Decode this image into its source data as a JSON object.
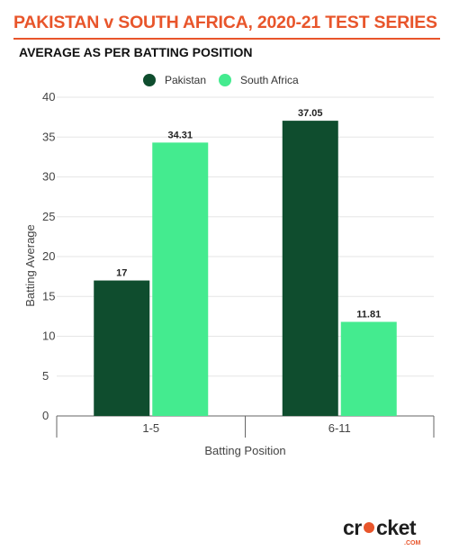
{
  "header": {
    "title": "PAKISTAN v SOUTH AFRICA, 2020-21 TEST SERIES",
    "subtitle": "AVERAGE AS PER BATTING POSITION"
  },
  "brand": {
    "logo_text": "cricket",
    "logo_suffix": ".COM",
    "accent": "#e8552b"
  },
  "chart_data": {
    "type": "bar",
    "categories": [
      "1-5",
      "6-11"
    ],
    "series": [
      {
        "name": "Pakistan",
        "values": [
          17,
          37.05
        ],
        "color": "#0f4d2e"
      },
      {
        "name": "South Africa",
        "values": [
          34.31,
          11.81
        ],
        "color": "#44eb8f"
      }
    ],
    "data_labels": [
      [
        "17",
        "37.05"
      ],
      [
        "34.31",
        "11.81"
      ]
    ],
    "xlabel": "Batting Position",
    "ylabel": "Batting Average",
    "ylim": [
      0,
      40
    ],
    "yticks": [
      0,
      5,
      10,
      15,
      20,
      25,
      30,
      35,
      40
    ],
    "grid": true,
    "legend": "top-center"
  }
}
